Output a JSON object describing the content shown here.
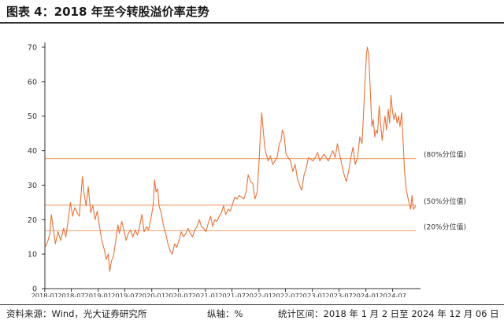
{
  "figure": {
    "title": "图表 4：2018 年至今转股溢价率走势",
    "source": "资料来源：Wind，光大证券研究所",
    "unit_note": "纵轴：%",
    "period_note": "统计区间：2018 年 1 月 2 日至 2024 年 12 月 06 日"
  },
  "colors": {
    "series": "#e8733a",
    "reference": "#f0a978",
    "axis": "#333333",
    "text": "#333333"
  },
  "chart_data": {
    "type": "line",
    "title": "图表 4：2018 年至今转股溢价率走势",
    "xlabel": "",
    "ylabel": "",
    "x_range": [
      "2018-01-02",
      "2024-12-06"
    ],
    "ylim": [
      0,
      70
    ],
    "yticks": [
      0,
      10,
      20,
      30,
      40,
      50,
      60,
      70
    ],
    "xtick_labels": [
      "2018-01",
      "2018-07",
      "2019-01",
      "2019-07",
      "2020-01",
      "2020-07",
      "2021-01",
      "2021-07",
      "2022-01",
      "2022-07",
      "2023-01",
      "2023-07",
      "2024-01",
      "2024-07"
    ],
    "grid": false,
    "legend": "none",
    "reference_lines": [
      {
        "label": "(80%分位值)",
        "value": 37.7
      },
      {
        "label": "(50%分位值)",
        "value": 24.2
      },
      {
        "label": "(20%分位值)",
        "value": 16.8
      }
    ],
    "series": [
      {
        "values": [
          [
            "2018-01-02",
            12.0
          ],
          [
            "2018-01-20",
            13.5
          ],
          [
            "2018-02-05",
            16.0
          ],
          [
            "2018-02-15",
            21.5
          ],
          [
            "2018-02-28",
            17.5
          ],
          [
            "2018-03-15",
            13.0
          ],
          [
            "2018-04-01",
            16.5
          ],
          [
            "2018-04-20",
            14.0
          ],
          [
            "2018-05-10",
            17.5
          ],
          [
            "2018-05-25",
            15.0
          ],
          [
            "2018-06-10",
            20.0
          ],
          [
            "2018-06-25",
            25.0
          ],
          [
            "2018-07-10",
            21.0
          ],
          [
            "2018-07-25",
            23.5
          ],
          [
            "2018-08-10",
            22.0
          ],
          [
            "2018-08-25",
            21.0
          ],
          [
            "2018-09-05",
            27.0
          ],
          [
            "2018-09-15",
            32.5
          ],
          [
            "2018-09-25",
            28.0
          ],
          [
            "2018-10-10",
            24.0
          ],
          [
            "2018-10-25",
            29.5
          ],
          [
            "2018-11-10",
            22.0
          ],
          [
            "2018-11-25",
            24.0
          ],
          [
            "2018-12-10",
            20.0
          ],
          [
            "2018-12-25",
            22.5
          ],
          [
            "2019-01-10",
            18.0
          ],
          [
            "2019-01-25",
            14.0
          ],
          [
            "2019-02-10",
            11.5
          ],
          [
            "2019-02-25",
            8.5
          ],
          [
            "2019-03-10",
            10.0
          ],
          [
            "2019-03-20",
            5.0
          ],
          [
            "2019-04-01",
            8.0
          ],
          [
            "2019-04-15",
            9.5
          ],
          [
            "2019-05-01",
            14.0
          ],
          [
            "2019-05-15",
            18.5
          ],
          [
            "2019-05-25",
            16.0
          ],
          [
            "2019-06-10",
            19.5
          ],
          [
            "2019-06-25",
            17.0
          ],
          [
            "2019-07-10",
            14.0
          ],
          [
            "2019-07-25",
            16.0
          ],
          [
            "2019-08-10",
            17.0
          ],
          [
            "2019-08-25",
            15.0
          ],
          [
            "2019-09-10",
            17.0
          ],
          [
            "2019-09-25",
            15.5
          ],
          [
            "2019-10-10",
            18.0
          ],
          [
            "2019-10-25",
            21.5
          ],
          [
            "2019-11-10",
            16.5
          ],
          [
            "2019-11-25",
            18.0
          ],
          [
            "2019-12-10",
            17.0
          ],
          [
            "2019-12-25",
            20.0
          ],
          [
            "2020-01-10",
            24.0
          ],
          [
            "2020-01-20",
            31.5
          ],
          [
            "2020-01-30",
            28.0
          ],
          [
            "2020-02-10",
            29.0
          ],
          [
            "2020-02-20",
            24.0
          ],
          [
            "2020-03-05",
            22.0
          ],
          [
            "2020-03-20",
            18.5
          ],
          [
            "2020-04-05",
            16.0
          ],
          [
            "2020-04-20",
            13.0
          ],
          [
            "2020-05-05",
            11.0
          ],
          [
            "2020-05-20",
            10.0
          ],
          [
            "2020-06-05",
            13.0
          ],
          [
            "2020-06-20",
            12.0
          ],
          [
            "2020-07-05",
            14.0
          ],
          [
            "2020-07-20",
            16.5
          ],
          [
            "2020-08-05",
            15.0
          ],
          [
            "2020-08-20",
            16.0
          ],
          [
            "2020-09-05",
            17.5
          ],
          [
            "2020-09-20",
            16.0
          ],
          [
            "2020-10-05",
            15.0
          ],
          [
            "2020-10-20",
            17.0
          ],
          [
            "2020-11-05",
            18.0
          ],
          [
            "2020-11-20",
            20.0
          ],
          [
            "2020-12-05",
            18.0
          ],
          [
            "2020-12-20",
            17.5
          ],
          [
            "2021-01-05",
            16.5
          ],
          [
            "2021-01-20",
            19.0
          ],
          [
            "2021-02-05",
            21.0
          ],
          [
            "2021-02-20",
            18.0
          ],
          [
            "2021-03-05",
            20.0
          ],
          [
            "2021-03-20",
            19.5
          ],
          [
            "2021-04-05",
            21.0
          ],
          [
            "2021-04-20",
            22.0
          ],
          [
            "2021-05-05",
            24.0
          ],
          [
            "2021-05-20",
            21.5
          ],
          [
            "2021-06-05",
            23.0
          ],
          [
            "2021-06-20",
            22.5
          ],
          [
            "2021-07-05",
            24.5
          ],
          [
            "2021-07-20",
            26.5
          ],
          [
            "2021-08-05",
            26.0
          ],
          [
            "2021-08-20",
            27.0
          ],
          [
            "2021-09-05",
            26.5
          ],
          [
            "2021-09-20",
            26.0
          ],
          [
            "2021-10-05",
            28.0
          ],
          [
            "2021-10-20",
            33.0
          ],
          [
            "2021-11-05",
            31.0
          ],
          [
            "2021-11-20",
            30.5
          ],
          [
            "2021-12-05",
            26.0
          ],
          [
            "2021-12-20",
            28.0
          ],
          [
            "2022-01-01",
            36.0
          ],
          [
            "2022-01-10",
            44.0
          ],
          [
            "2022-01-20",
            51.0
          ],
          [
            "2022-01-30",
            46.0
          ],
          [
            "2022-02-10",
            41.0
          ],
          [
            "2022-02-20",
            39.0
          ],
          [
            "2022-03-05",
            37.0
          ],
          [
            "2022-03-20",
            38.5
          ],
          [
            "2022-04-05",
            36.0
          ],
          [
            "2022-04-20",
            37.0
          ],
          [
            "2022-05-05",
            38.0
          ],
          [
            "2022-05-20",
            42.0
          ],
          [
            "2022-06-01",
            43.0
          ],
          [
            "2022-06-10",
            46.0
          ],
          [
            "2022-06-20",
            45.0
          ],
          [
            "2022-07-05",
            39.0
          ],
          [
            "2022-07-20",
            38.0
          ],
          [
            "2022-08-05",
            37.0
          ],
          [
            "2022-08-20",
            34.0
          ],
          [
            "2022-09-05",
            36.0
          ],
          [
            "2022-09-20",
            32.0
          ],
          [
            "2022-10-05",
            30.0
          ],
          [
            "2022-10-20",
            28.5
          ],
          [
            "2022-11-05",
            33.0
          ],
          [
            "2022-11-20",
            35.0
          ],
          [
            "2022-12-05",
            38.0
          ],
          [
            "2022-12-20",
            37.5
          ],
          [
            "2023-01-05",
            37.0
          ],
          [
            "2023-01-20",
            38.0
          ],
          [
            "2023-02-05",
            39.5
          ],
          [
            "2023-02-20",
            37.0
          ],
          [
            "2023-03-05",
            38.0
          ],
          [
            "2023-03-20",
            39.0
          ],
          [
            "2023-04-05",
            38.0
          ],
          [
            "2023-04-20",
            37.0
          ],
          [
            "2023-05-05",
            38.5
          ],
          [
            "2023-05-20",
            40.0
          ],
          [
            "2023-06-05",
            38.0
          ],
          [
            "2023-06-20",
            42.0
          ],
          [
            "2023-07-05",
            39.0
          ],
          [
            "2023-07-20",
            36.0
          ],
          [
            "2023-08-05",
            33.0
          ],
          [
            "2023-08-20",
            31.0
          ],
          [
            "2023-09-05",
            34.0
          ],
          [
            "2023-09-20",
            38.0
          ],
          [
            "2023-10-05",
            41.0
          ],
          [
            "2023-10-20",
            36.0
          ],
          [
            "2023-11-05",
            38.0
          ],
          [
            "2023-11-20",
            44.0
          ],
          [
            "2023-12-05",
            42.0
          ],
          [
            "2023-12-15",
            50.0
          ],
          [
            "2023-12-25",
            60.0
          ],
          [
            "2024-01-05",
            68.0
          ],
          [
            "2024-01-10",
            70.0
          ],
          [
            "2024-01-20",
            68.0
          ],
          [
            "2024-02-01",
            56.0
          ],
          [
            "2024-02-10",
            47.0
          ],
          [
            "2024-02-20",
            49.0
          ],
          [
            "2024-03-01",
            44.0
          ],
          [
            "2024-03-10",
            46.0
          ],
          [
            "2024-03-20",
            45.0
          ],
          [
            "2024-04-01",
            53.0
          ],
          [
            "2024-04-10",
            48.0
          ],
          [
            "2024-04-20",
            43.0
          ],
          [
            "2024-05-01",
            47.0
          ],
          [
            "2024-05-10",
            50.0
          ],
          [
            "2024-05-20",
            46.0
          ],
          [
            "2024-06-01",
            52.0
          ],
          [
            "2024-06-10",
            48.0
          ],
          [
            "2024-06-20",
            56.0
          ],
          [
            "2024-07-01",
            51.0
          ],
          [
            "2024-07-10",
            49.0
          ],
          [
            "2024-07-20",
            51.0
          ],
          [
            "2024-08-01",
            48.0
          ],
          [
            "2024-08-10",
            50.0
          ],
          [
            "2024-08-20",
            47.0
          ],
          [
            "2024-09-01",
            51.0
          ],
          [
            "2024-09-10",
            43.0
          ],
          [
            "2024-09-20",
            34.0
          ],
          [
            "2024-10-01",
            29.0
          ],
          [
            "2024-10-10",
            27.0
          ],
          [
            "2024-10-20",
            25.0
          ],
          [
            "2024-11-01",
            23.0
          ],
          [
            "2024-11-10",
            27.0
          ],
          [
            "2024-11-20",
            23.0
          ],
          [
            "2024-12-06",
            24.0
          ]
        ]
      }
    ]
  }
}
